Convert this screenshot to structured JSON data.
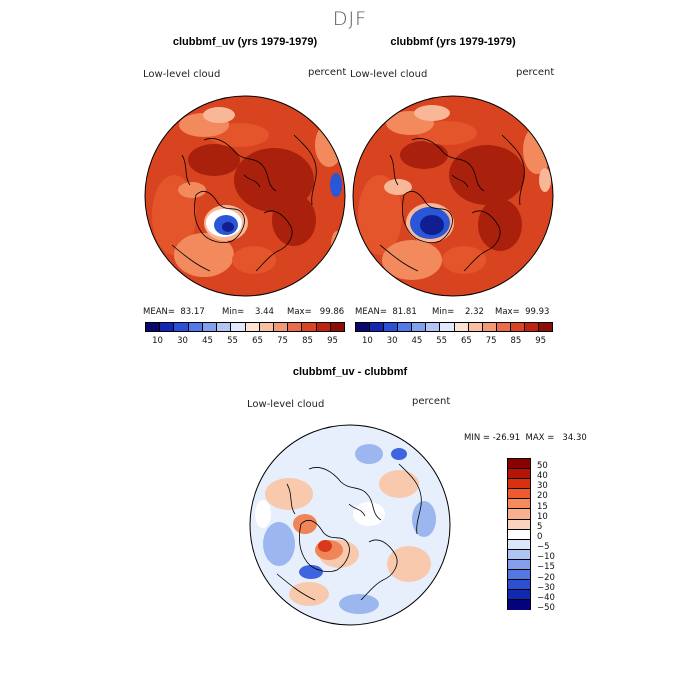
{
  "figure": {
    "season": "DJF"
  },
  "panels": [
    {
      "title": "clubbmf_uv (yrs 1979-1979)",
      "left_label": "Low-level cloud",
      "right_label": "percent",
      "stats": {
        "mean": "MEAN=  83.17",
        "min": "Min=    3.44",
        "max": "Max=   99.86"
      }
    },
    {
      "title": "clubbmf (yrs 1979-1979)",
      "left_label": "Low-level cloud",
      "right_label": "percent",
      "stats": {
        "mean": "MEAN=  81.81",
        "min": "Min=    2.32",
        "max": "Max=  99.93"
      }
    },
    {
      "title": "clubbmf_uv - clubbmf",
      "left_label": "Low-level cloud",
      "right_label": "percent",
      "stats": {
        "minmax": "MIN = -26.91  MAX =   34.30"
      }
    }
  ],
  "colorbar_abs": {
    "colors": [
      "#08086e",
      "#1427b4",
      "#2c4fd8",
      "#5479e8",
      "#82a0ee",
      "#b1c4f2",
      "#dfe9fb",
      "#fde3d3",
      "#f8bfa2",
      "#f29a78",
      "#e96d4d",
      "#db4326",
      "#c02210",
      "#8e0e06"
    ],
    "tick_labels": [
      "10",
      "30",
      "45",
      "55",
      "65",
      "75",
      "85",
      "95"
    ]
  },
  "colorbar_diff": {
    "colors": [
      "#8b0000",
      "#b71408",
      "#d9300f",
      "#ee5a2e",
      "#f58a5d",
      "#f8b08f",
      "#fbd3bc",
      "#ffffff",
      "#dbe6fb",
      "#aec4f3",
      "#839fec",
      "#5478e2",
      "#2d4fd2",
      "#1029b0",
      "#04037c"
    ],
    "tick_labels": [
      "50",
      "40",
      "30",
      "20",
      "15",
      "10",
      "5",
      "0",
      "−5",
      "−10",
      "−15",
      "−20",
      "−30",
      "−40",
      "−50"
    ]
  },
  "map_colors": {
    "abs_base": "#d84320",
    "abs_dark": "#a9200d",
    "abs_mid": "#e4552b",
    "abs_light": "#f28a5e",
    "abs_pale": "#f8b898",
    "abs_blue": "#2a56d8",
    "abs_navy": "#101e8f",
    "diff_base": "#e8effc",
    "diff_blue": "#9cb7ef",
    "diff_dblue": "#3e64df",
    "diff_peach": "#f8c9ad",
    "diff_orange": "#f08658",
    "diff_red": "#d9381a",
    "white": "#ffffff"
  }
}
